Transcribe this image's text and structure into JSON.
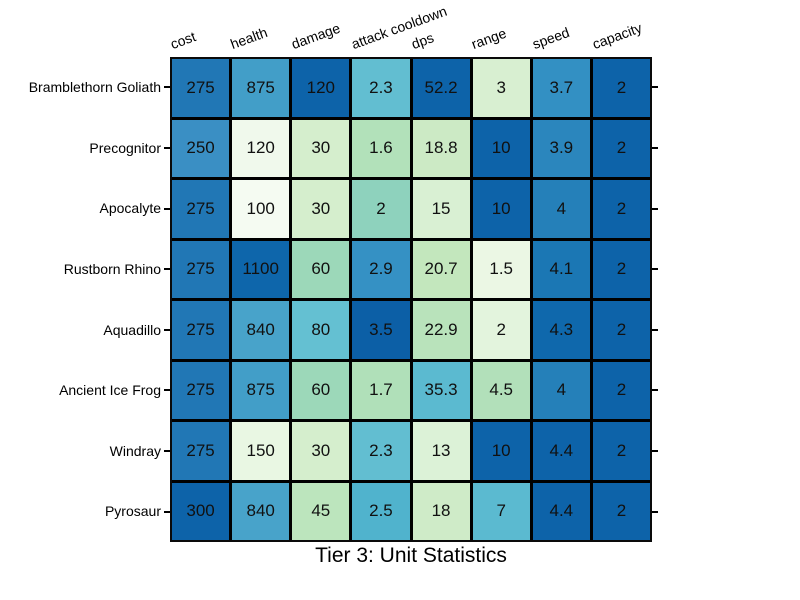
{
  "title": "Tier 3: Unit Statistics",
  "chart_data": {
    "type": "heatmap",
    "title": "Tier 3: Unit Statistics",
    "columns": [
      "cost",
      "health",
      "damage",
      "attack cooldown",
      "dps",
      "range",
      "speed",
      "capacity"
    ],
    "rows": [
      "Bramblethorn Goliath",
      "Precognitor",
      "Apocalyte",
      "Rustborn Rhino",
      "Aquadillo",
      "Ancient Ice Frog",
      "Windray",
      "Pyrosaur"
    ],
    "values": [
      [
        275,
        875,
        120,
        2.3,
        52.2,
        3,
        3.7,
        2
      ],
      [
        250,
        120,
        30,
        1.6,
        18.8,
        10,
        3.9,
        2
      ],
      [
        275,
        100,
        30,
        2,
        15,
        10,
        4,
        2
      ],
      [
        275,
        1100,
        60,
        2.9,
        20.7,
        1.5,
        4.1,
        2
      ],
      [
        275,
        840,
        80,
        3.5,
        22.9,
        2,
        4.3,
        2
      ],
      [
        275,
        875,
        60,
        1.7,
        35.3,
        4.5,
        4,
        2
      ],
      [
        275,
        150,
        30,
        2.3,
        13,
        10,
        4.4,
        2
      ],
      [
        300,
        840,
        45,
        2.5,
        18,
        7,
        4.4,
        2
      ]
    ],
    "cell_colors": [
      [
        "#2177b5",
        "#429ec8",
        "#0d63a9",
        "#62bed1",
        "#0d63a9",
        "#d8efd1",
        "#3390c3",
        "#0d63a9"
      ],
      [
        "#3a8fc4",
        "#f0f9ec",
        "#d5eecd",
        "#b2e1ba",
        "#cceac5",
        "#0d63a9",
        "#2b86bd",
        "#0d63a9"
      ],
      [
        "#2177b5",
        "#f5fbf2",
        "#d5eecd",
        "#8ed2bd",
        "#d9f0d3",
        "#0d63a9",
        "#2580b9",
        "#0d63a9"
      ],
      [
        "#2177b5",
        "#0e66ab",
        "#9cd8b9",
        "#3591c4",
        "#c3e7bd",
        "#ebf7e4",
        "#1b77b4",
        "#0d63a9"
      ],
      [
        "#2177b5",
        "#48a3ca",
        "#64c0d2",
        "#0c5fa6",
        "#b9e3bb",
        "#e3f4dd",
        "#0f68ac",
        "#0d63a9"
      ],
      [
        "#2177b5",
        "#429ec8",
        "#9cd8b9",
        "#b0e0b9",
        "#5bbad0",
        "#b2e0ba",
        "#2580b9",
        "#0d63a9"
      ],
      [
        "#2177b5",
        "#e9f7e3",
        "#d5eecd",
        "#62bed1",
        "#dcf2d7",
        "#0d63a9",
        "#0d63a9",
        "#0d63a9"
      ],
      [
        "#0d63a9",
        "#48a3ca",
        "#bce5bd",
        "#50b3cd",
        "#cfebc8",
        "#5bbad0",
        "#0d63a9",
        "#0d63a9"
      ]
    ],
    "colormap_low_color": "#f7fcf0",
    "colormap_high_color": "#084081",
    "grid_line_color": "#000000",
    "value_text_color": "#111111",
    "background": "#ffffff",
    "legend": "none",
    "header_rotation_deg": -20
  }
}
